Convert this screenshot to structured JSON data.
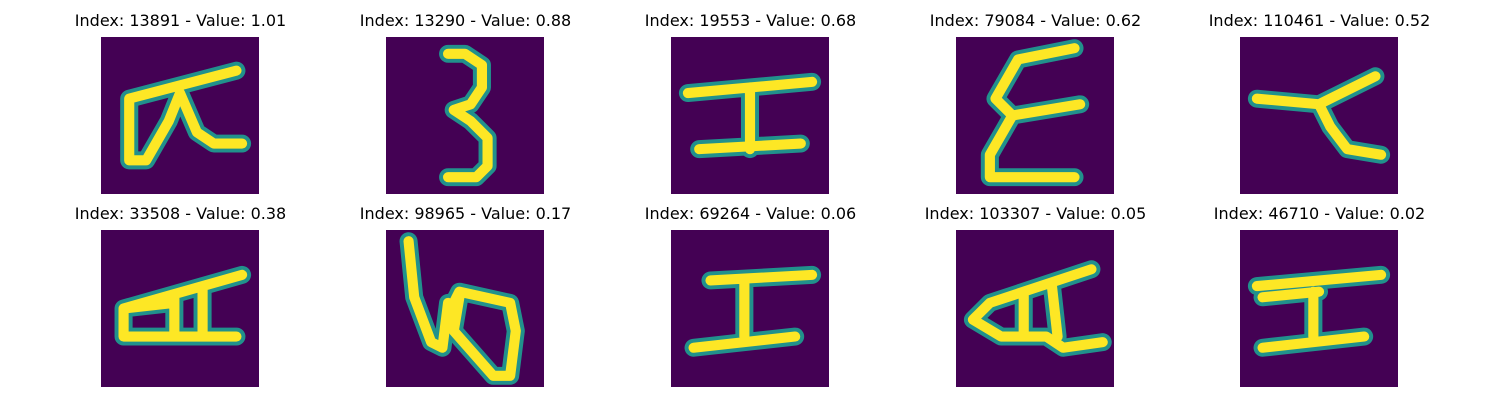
{
  "palette": {
    "background": "#440154",
    "mid": "#21918c",
    "bright": "#fde725"
  },
  "panels": [
    {
      "title": "Index: 13891 - Value: 1.01",
      "glyph": "alpha-glyph"
    },
    {
      "title": "Index: 13290 - Value: 0.88",
      "glyph": "three-glyph"
    },
    {
      "title": "Index: 19553 - Value: 0.68",
      "glyph": "h-glyph"
    },
    {
      "title": "Index: 79084 - Value: 0.62",
      "glyph": "zigzag-glyph"
    },
    {
      "title": "Index: 110461 - Value: 0.52",
      "glyph": "hook-glyph"
    },
    {
      "title": "Index: 33508 - Value: 0.38",
      "glyph": "a-glyph"
    },
    {
      "title": "Index: 98965 - Value: 0.17",
      "glyph": "loop-glyph"
    },
    {
      "title": "Index: 69264 - Value: 0.06",
      "glyph": "h-glyph"
    },
    {
      "title": "Index: 103307 - Value: 0.05",
      "glyph": "a-glyph"
    },
    {
      "title": "Index: 46710 - Value: 0.02",
      "glyph": "h-glyph"
    }
  ]
}
